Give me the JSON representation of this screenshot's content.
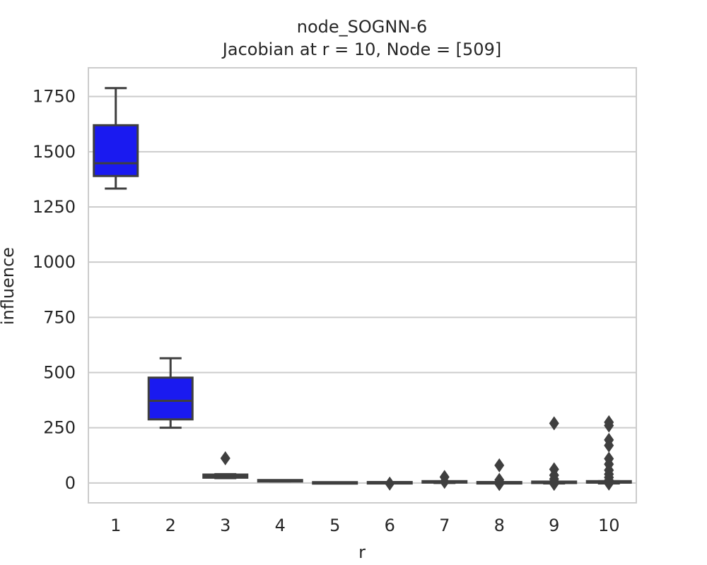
{
  "chart_data": {
    "type": "box",
    "title": "node_SOGNN-6",
    "subtitle": "Jacobian at r = 10, Node = [509]",
    "xlabel": "r",
    "ylabel": "influence",
    "ylim": [
      -90,
      1880
    ],
    "yticks": [
      0,
      250,
      500,
      750,
      1000,
      1250,
      1500,
      1750
    ],
    "ytick_labels": [
      "0",
      "250",
      "500",
      "750",
      "1000",
      "1250",
      "1500",
      "1750"
    ],
    "grid": "horizontal",
    "categories": [
      "1",
      "2",
      "3",
      "4",
      "5",
      "6",
      "7",
      "8",
      "9",
      "10"
    ],
    "boxes": [
      {
        "category": "1",
        "whisker_low": 1333,
        "q1": 1390,
        "median": 1448,
        "q3": 1620,
        "whisker_high": 1788,
        "outliers": [],
        "color": "#1a1af0"
      },
      {
        "category": "2",
        "whisker_low": 250,
        "q1": 288,
        "median": 372,
        "q3": 477,
        "whisker_high": 565,
        "outliers": [],
        "color": "#1a1af0"
      },
      {
        "category": "3",
        "whisker_low": 22,
        "q1": 24,
        "median": 30,
        "q3": 38,
        "whisker_high": 40,
        "outliers": [
          112
        ],
        "color": "#1a1af0"
      },
      {
        "category": "4",
        "whisker_low": 7,
        "q1": 8,
        "median": 9,
        "q3": 10,
        "whisker_high": 11,
        "outliers": [],
        "color": "#1a1af0"
      },
      {
        "category": "5",
        "whisker_low": -1,
        "q1": -0.5,
        "median": 0,
        "q3": 0.5,
        "whisker_high": 1,
        "outliers": [],
        "color": "#1a1af0"
      },
      {
        "category": "6",
        "whisker_low": -2,
        "q1": -1,
        "median": 0,
        "q3": 1,
        "whisker_high": 2,
        "outliers": [
          -3
        ],
        "color": "#1a1af0"
      },
      {
        "category": "7",
        "whisker_low": 0,
        "q1": 1,
        "median": 3,
        "q3": 5,
        "whisker_high": 7,
        "outliers": [
          27,
          5
        ],
        "color": "#1a1af0"
      },
      {
        "category": "8",
        "whisker_low": -2,
        "q1": -1,
        "median": 0,
        "q3": 1,
        "whisker_high": 2,
        "outliers": [
          80,
          14,
          -5
        ],
        "color": "#1a1af0"
      },
      {
        "category": "9",
        "whisker_low": -2,
        "q1": -1,
        "median": 1,
        "q3": 3,
        "whisker_high": 5,
        "outliers": [
          270,
          62,
          35,
          18,
          8,
          -4
        ],
        "color": "#1a1af0"
      },
      {
        "category": "10",
        "whisker_low": -2,
        "q1": -1,
        "median": 2,
        "q3": 5,
        "whisker_high": 8,
        "outliers": [
          275,
          260,
          195,
          170,
          110,
          85,
          58,
          40,
          25,
          12,
          -3
        ],
        "color": "#1a1af0"
      }
    ]
  }
}
